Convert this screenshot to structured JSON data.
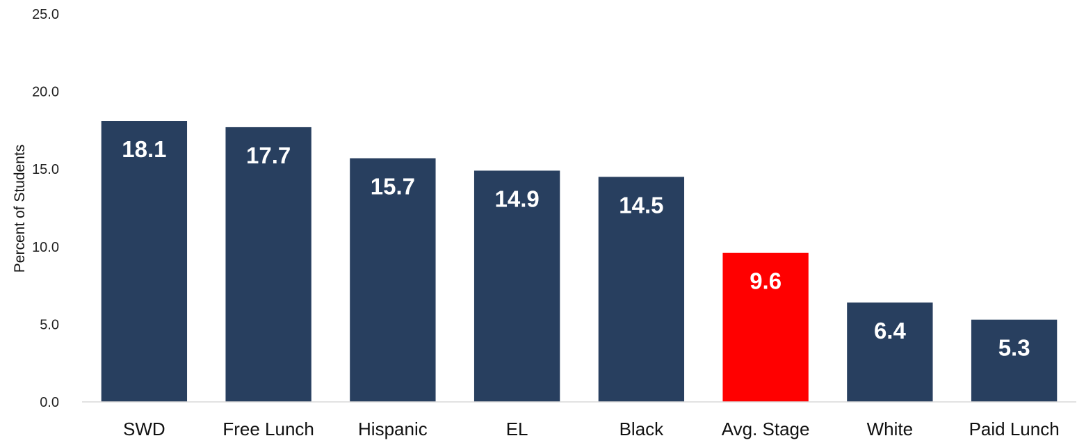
{
  "chart_data": {
    "type": "bar",
    "title": "",
    "xlabel": "",
    "ylabel": "Percent of Students",
    "ylim": [
      0,
      25
    ],
    "yticks": [
      "0.0",
      "5.0",
      "10.0",
      "15.0",
      "20.0",
      "25.0"
    ],
    "categories": [
      "SWD",
      "Free Lunch",
      "Hispanic",
      "EL",
      "Black",
      "Avg. Stage",
      "White",
      "Paid Lunch"
    ],
    "values": [
      18.1,
      17.7,
      15.7,
      14.9,
      14.5,
      9.6,
      6.4,
      5.3
    ],
    "data_labels": [
      "18.1",
      "17.7",
      "15.7",
      "14.9",
      "14.5",
      "9.6",
      "6.4",
      "5.3"
    ],
    "bar_colors": [
      "#283f5f",
      "#283f5f",
      "#283f5f",
      "#283f5f",
      "#283f5f",
      "#ff0000",
      "#283f5f",
      "#283f5f"
    ],
    "grid": false,
    "legend": "none"
  }
}
